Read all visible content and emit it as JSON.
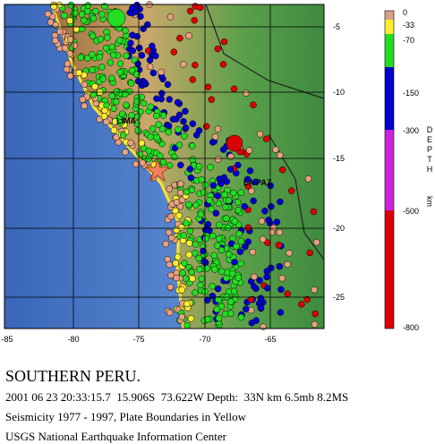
{
  "map": {
    "lon_labels": [
      "-85",
      "-80",
      "-75",
      "-70",
      "-65"
    ],
    "lat_labels": [
      "-5",
      "-10",
      "-15",
      "-20",
      "-25"
    ],
    "cities": [
      "LIMA",
      "LA PAZ"
    ]
  },
  "legend": {
    "depth_labels": [
      "0",
      "-33",
      "-70",
      "-150",
      "-300",
      "-500",
      "-800"
    ],
    "title": "DEPTH",
    "unit": "km"
  },
  "caption": {
    "title": "SOUTHERN PERU.",
    "lines": [
      "2001 06 23 20:33:15.7  15.906S  73.622W Depth:  33N km 6.5mb 8.2MS",
      "Seismicity 1977 - 1997, Plate Boundaries in Yellow",
      "USGS National Earthquake Information Center"
    ]
  }
}
